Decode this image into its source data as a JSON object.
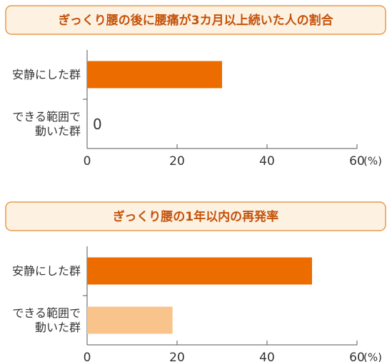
{
  "chart_data": [
    {
      "type": "bar",
      "orientation": "horizontal",
      "title": "ぎっくり腰の後に腰痛が3カ月以上続いた人の割合",
      "categories": [
        "安静にした群",
        "できる範囲で\n動いた群"
      ],
      "values": [
        30,
        0
      ],
      "colors": [
        "#ec6c00",
        "#ec6c00"
      ],
      "xlim": [
        0,
        60
      ],
      "xticks": [
        0,
        20,
        40,
        60
      ],
      "x_unit": "(%)"
    },
    {
      "type": "bar",
      "orientation": "horizontal",
      "title": "ぎっくり腰の1年以内の再発率",
      "categories": [
        "安静にした群",
        "できる範囲で\n動いた群"
      ],
      "values": [
        50,
        19
      ],
      "colors": [
        "#ec6c00",
        "#f9c48c"
      ],
      "xlim": [
        0,
        60
      ],
      "xticks": [
        0,
        20,
        40,
        60
      ],
      "x_unit": "(%)"
    }
  ]
}
